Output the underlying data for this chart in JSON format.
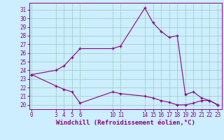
{
  "upper_x": [
    0,
    3,
    4,
    5,
    6,
    10,
    11,
    14,
    15,
    16,
    17,
    18,
    19,
    20,
    21,
    22,
    23
  ],
  "upper_y": [
    23.5,
    24.0,
    24.5,
    25.5,
    26.5,
    26.5,
    26.8,
    31.2,
    29.5,
    28.5,
    27.8,
    28.0,
    21.2,
    21.5,
    20.8,
    20.5,
    20.0
  ],
  "lower_x": [
    0,
    3,
    4,
    5,
    6,
    10,
    11,
    14,
    15,
    16,
    17,
    18,
    19,
    20,
    21,
    22,
    23
  ],
  "lower_y": [
    23.5,
    22.2,
    21.8,
    21.5,
    20.2,
    21.5,
    21.3,
    21.0,
    20.8,
    20.5,
    20.3,
    20.0,
    20.0,
    20.2,
    20.5,
    20.5,
    20.0
  ],
  "line_color": "#880088",
  "bg_color": "#cceeff",
  "grid_color": "#99ccbb",
  "xlabel": "Windchill (Refroidissement éolien,°C)",
  "xticks": [
    0,
    3,
    4,
    5,
    6,
    10,
    11,
    14,
    15,
    16,
    17,
    18,
    19,
    20,
    21,
    22,
    23
  ],
  "yticks": [
    20,
    21,
    22,
    23,
    24,
    25,
    26,
    27,
    28,
    29,
    30,
    31
  ],
  "xlim": [
    -0.3,
    23.5
  ],
  "ylim": [
    19.5,
    31.8
  ],
  "xlabel_fontsize": 6.5,
  "tick_fontsize": 5.5
}
